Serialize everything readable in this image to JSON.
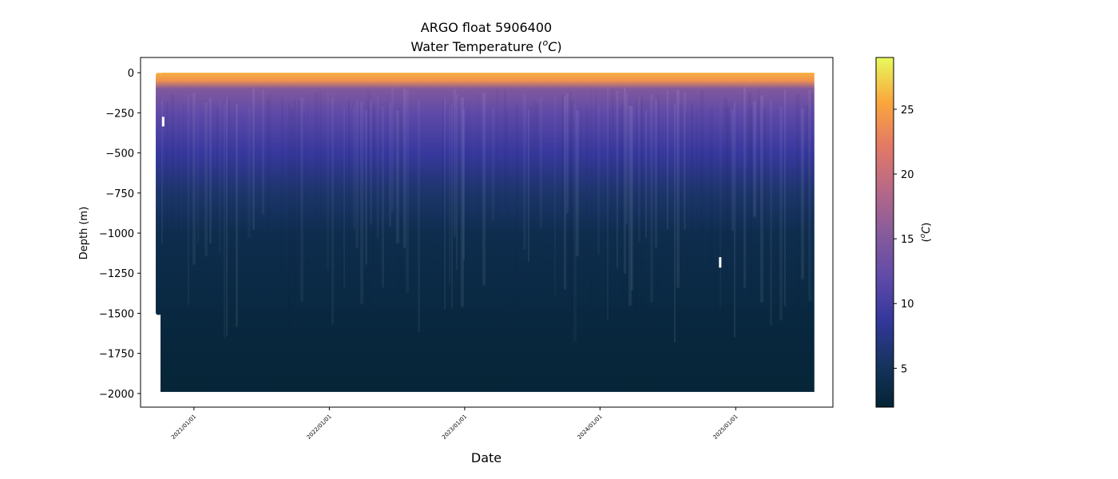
{
  "chart_data": {
    "type": "heatmap",
    "title": "ARGO float 5906400",
    "subtitle_prefix": "Water Temperature (",
    "subtitle_unit_sup": "o",
    "subtitle_unit_main": "C",
    "subtitle_suffix": ")",
    "xlabel": "Date",
    "ylabel": "Depth (m)",
    "colorbar_label_prefix": "(",
    "colorbar_label_sup": "o",
    "colorbar_label_main": "C",
    "colorbar_label_suffix": ")",
    "x_start": "2020-09-20",
    "x_end": "2025-08-01",
    "xlim": [
      "2020-08-10",
      "2025-09-20"
    ],
    "ylim": [
      -2085,
      95
    ],
    "depth_max": -1990,
    "x_ticks": [
      {
        "date": "2021-01-01",
        "label": "2021/01/01"
      },
      {
        "date": "2022-01-01",
        "label": "2022/01/01"
      },
      {
        "date": "2023-01-01",
        "label": "2023/01/01"
      },
      {
        "date": "2024-01-01",
        "label": "2024/01/01"
      },
      {
        "date": "2025-01-01",
        "label": "2025/01/01"
      }
    ],
    "y_ticks": [
      {
        "value": 0,
        "label": "0"
      },
      {
        "value": -250,
        "label": "−250"
      },
      {
        "value": -500,
        "label": "−500"
      },
      {
        "value": -750,
        "label": "−750"
      },
      {
        "value": -1000,
        "label": "−1000"
      },
      {
        "value": -1250,
        "label": "−1250"
      },
      {
        "value": -1500,
        "label": "−1500"
      },
      {
        "value": -1750,
        "label": "−1750"
      },
      {
        "value": -2000,
        "label": "−2000"
      }
    ],
    "colorbar": {
      "colormap": "thermal",
      "vmin": 2,
      "vmax": 29,
      "ticks": [
        {
          "value": 5,
          "label": "5"
        },
        {
          "value": 10,
          "label": "10"
        },
        {
          "value": 15,
          "label": "15"
        },
        {
          "value": 20,
          "label": "20"
        },
        {
          "value": 25,
          "label": "25"
        }
      ]
    },
    "temperature_profile": [
      {
        "depth": 0,
        "temp": 26
      },
      {
        "depth": -50,
        "temp": 24
      },
      {
        "depth": -100,
        "temp": 15
      },
      {
        "depth": -250,
        "temp": 12
      },
      {
        "depth": -500,
        "temp": 9
      },
      {
        "depth": -750,
        "temp": 6
      },
      {
        "depth": -1000,
        "temp": 4
      },
      {
        "depth": -1500,
        "temp": 3
      },
      {
        "depth": -2000,
        "temp": 2.3
      }
    ],
    "missing_data_markers": [
      {
        "date": "2020-10-10",
        "depth_top": -275,
        "depth_bottom": -335
      },
      {
        "date": "2024-11-20",
        "depth_top": -1150,
        "depth_bottom": -1215
      }
    ],
    "early_profile_floor": {
      "date_start": "2020-09-20",
      "date_end": "2020-10-05",
      "depth": -1510
    }
  }
}
